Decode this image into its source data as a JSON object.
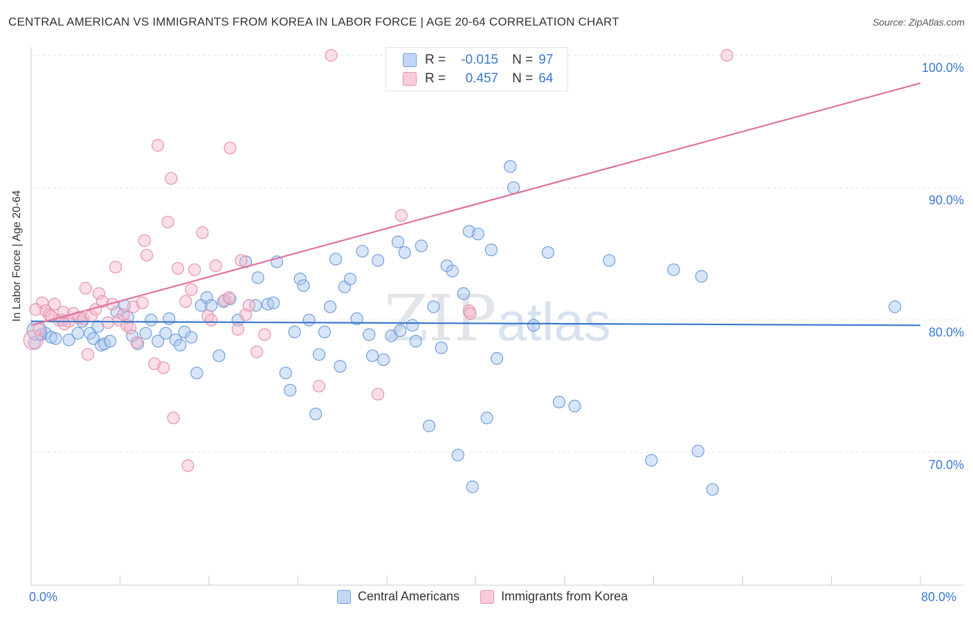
{
  "header": {
    "title": "CENTRAL AMERICAN VS IMMIGRANTS FROM KOREA IN LABOR FORCE | AGE 20-64 CORRELATION CHART",
    "source": "Source: ZipAtlas.com"
  },
  "watermark": {
    "zip": "ZIP",
    "atlas": "atlas"
  },
  "legend_top": [
    {
      "r_label": "R =",
      "r_value": "-0.015",
      "n_label": "N =",
      "n_value": "97",
      "color": "#a9c6ef"
    },
    {
      "r_label": "R =",
      "r_value": "0.457",
      "n_label": "N =",
      "n_value": "64",
      "color": "#f6b9cb"
    }
  ],
  "legend_bottom": [
    {
      "label": "Central Americans",
      "color": "#a9c6ef"
    },
    {
      "label": "Immigrants from Korea",
      "color": "#f6b9cb"
    }
  ],
  "axes": {
    "ylabel": "In Labor Force | Age 20-64",
    "x_min_label": "0.0%",
    "x_max_label": "80.0%",
    "y_ticks": [
      "100.0%",
      "90.0%",
      "80.0%",
      "70.0%"
    ]
  },
  "colors": {
    "blue_fill": "#a9c6ef",
    "blue_stroke": "#6f9fdc",
    "blue_line": "#3a78cc",
    "pink_fill": "#f6b9cb",
    "pink_stroke": "#e892ad",
    "pink_line": "#e0709a",
    "tick_label": "#3b78d0",
    "grid": "#dfe3ea"
  },
  "chart_data": {
    "type": "scatter",
    "title": "CENTRAL AMERICAN VS IMMIGRANTS FROM KOREA IN LABOR FORCE | AGE 20-64 CORRELATION CHART",
    "xlabel": "",
    "ylabel": "In Labor Force | Age 20-64",
    "xlim": [
      0,
      80
    ],
    "ylim": [
      60,
      101
    ],
    "y_gridlines": [
      70,
      80,
      90,
      100
    ],
    "grid": true,
    "legend_placement": "top-center",
    "series": [
      {
        "name": "Central Americans",
        "r": -0.015,
        "n": 97,
        "trend": {
          "x": [
            0,
            80
          ],
          "y": [
            79.9,
            79.6
          ]
        },
        "points": [
          [
            0.3,
            78.3
          ],
          [
            0.9,
            78.9
          ],
          [
            1.3,
            79.0
          ],
          [
            1.8,
            78.7
          ],
          [
            2.2,
            78.6
          ],
          [
            2.8,
            80.0
          ],
          [
            3.4,
            78.5
          ],
          [
            4.2,
            79.0
          ],
          [
            4.6,
            79.9
          ],
          [
            5.3,
            79.0
          ],
          [
            5.6,
            78.6
          ],
          [
            6.0,
            79.5
          ],
          [
            6.3,
            78.1
          ],
          [
            6.6,
            78.2
          ],
          [
            7.1,
            78.4
          ],
          [
            7.7,
            80.6
          ],
          [
            8.4,
            81.1
          ],
          [
            8.7,
            80.2
          ],
          [
            9.1,
            78.8
          ],
          [
            9.6,
            78.2
          ],
          [
            10.3,
            79.0
          ],
          [
            10.8,
            80.0
          ],
          [
            11.4,
            78.4
          ],
          [
            12.1,
            79.0
          ],
          [
            12.4,
            80.1
          ],
          [
            13.0,
            78.5
          ],
          [
            13.4,
            78.1
          ],
          [
            13.8,
            79.1
          ],
          [
            14.4,
            78.7
          ],
          [
            14.9,
            76.0
          ],
          [
            15.3,
            81.1
          ],
          [
            15.8,
            81.7
          ],
          [
            16.2,
            81.1
          ],
          [
            16.9,
            77.3
          ],
          [
            17.3,
            81.4
          ],
          [
            17.9,
            81.6
          ],
          [
            18.6,
            80.0
          ],
          [
            19.3,
            84.4
          ],
          [
            20.2,
            81.1
          ],
          [
            20.4,
            83.2
          ],
          [
            21.3,
            81.2
          ],
          [
            21.8,
            81.3
          ],
          [
            22.1,
            84.4
          ],
          [
            22.9,
            76.0
          ],
          [
            23.3,
            74.7
          ],
          [
            23.7,
            79.1
          ],
          [
            24.2,
            83.1
          ],
          [
            24.5,
            82.6
          ],
          [
            25.0,
            80.0
          ],
          [
            25.6,
            72.9
          ],
          [
            25.9,
            77.4
          ],
          [
            26.4,
            79.1
          ],
          [
            26.9,
            81.0
          ],
          [
            27.4,
            84.6
          ],
          [
            27.8,
            76.5
          ],
          [
            28.2,
            82.5
          ],
          [
            28.7,
            83.1
          ],
          [
            29.3,
            80.1
          ],
          [
            29.8,
            85.2
          ],
          [
            30.4,
            78.9
          ],
          [
            30.7,
            77.3
          ],
          [
            31.2,
            84.5
          ],
          [
            31.7,
            77.0
          ],
          [
            32.4,
            78.8
          ],
          [
            33.0,
            85.9
          ],
          [
            33.2,
            79.2
          ],
          [
            33.6,
            85.1
          ],
          [
            34.3,
            79.6
          ],
          [
            34.6,
            78.4
          ],
          [
            35.1,
            85.6
          ],
          [
            35.8,
            72.0
          ],
          [
            36.2,
            81.0
          ],
          [
            36.9,
            77.9
          ],
          [
            37.4,
            84.1
          ],
          [
            37.9,
            83.7
          ],
          [
            38.4,
            69.8
          ],
          [
            38.9,
            82.0
          ],
          [
            39.4,
            86.7
          ],
          [
            39.7,
            67.4
          ],
          [
            40.2,
            86.5
          ],
          [
            41.0,
            72.6
          ],
          [
            41.4,
            85.3
          ],
          [
            41.9,
            77.1
          ],
          [
            43.1,
            91.6
          ],
          [
            43.4,
            90.0
          ],
          [
            45.2,
            79.6
          ],
          [
            46.5,
            85.1
          ],
          [
            47.5,
            73.8
          ],
          [
            48.9,
            73.5
          ],
          [
            52.0,
            84.5
          ],
          [
            55.8,
            69.4
          ],
          [
            57.8,
            83.8
          ],
          [
            60.0,
            70.1
          ],
          [
            60.3,
            83.3
          ],
          [
            61.3,
            67.2
          ],
          [
            77.7,
            81.0
          ],
          [
            0.5,
            79.2
          ]
        ]
      },
      {
        "name": "Immigrants from Korea",
        "r": 0.457,
        "n": 64,
        "trend": {
          "x": [
            0,
            80
          ],
          "y": [
            79.6,
            97.9
          ]
        },
        "points": [
          [
            0.2,
            78.5
          ],
          [
            0.7,
            79.3
          ],
          [
            1.0,
            81.3
          ],
          [
            1.3,
            80.7
          ],
          [
            1.6,
            80.4
          ],
          [
            2.1,
            81.2
          ],
          [
            2.5,
            80.0
          ],
          [
            2.9,
            80.6
          ],
          [
            3.4,
            79.9
          ],
          [
            3.8,
            80.5
          ],
          [
            4.3,
            80.2
          ],
          [
            4.7,
            80.1
          ],
          [
            4.9,
            82.4
          ],
          [
            5.1,
            77.4
          ],
          [
            5.4,
            80.3
          ],
          [
            5.8,
            80.8
          ],
          [
            6.1,
            82.0
          ],
          [
            6.4,
            81.4
          ],
          [
            6.9,
            79.8
          ],
          [
            7.3,
            81.2
          ],
          [
            7.6,
            84.0
          ],
          [
            7.9,
            80.0
          ],
          [
            8.3,
            80.4
          ],
          [
            8.6,
            79.6
          ],
          [
            8.9,
            79.4
          ],
          [
            9.2,
            81.0
          ],
          [
            9.5,
            78.3
          ],
          [
            10.0,
            81.3
          ],
          [
            10.2,
            86.0
          ],
          [
            10.4,
            84.9
          ],
          [
            11.1,
            76.7
          ],
          [
            11.4,
            93.2
          ],
          [
            11.9,
            76.4
          ],
          [
            12.3,
            87.4
          ],
          [
            12.6,
            90.7
          ],
          [
            12.8,
            72.6
          ],
          [
            13.2,
            83.9
          ],
          [
            13.9,
            81.4
          ],
          [
            14.1,
            69.0
          ],
          [
            14.4,
            82.3
          ],
          [
            14.7,
            83.8
          ],
          [
            15.4,
            86.6
          ],
          [
            15.9,
            80.3
          ],
          [
            16.2,
            80.0
          ],
          [
            16.6,
            84.1
          ],
          [
            17.4,
            81.5
          ],
          [
            17.8,
            81.7
          ],
          [
            17.9,
            93.0
          ],
          [
            18.6,
            79.3
          ],
          [
            18.9,
            84.5
          ],
          [
            19.3,
            80.4
          ],
          [
            19.6,
            81.1
          ],
          [
            20.3,
            77.6
          ],
          [
            21.0,
            78.9
          ],
          [
            25.9,
            75.0
          ],
          [
            27.0,
            100.0
          ],
          [
            31.2,
            74.4
          ],
          [
            33.3,
            87.9
          ],
          [
            39.4,
            80.7
          ],
          [
            39.5,
            80.5
          ],
          [
            62.6,
            100.0
          ],
          [
            0.4,
            80.8
          ],
          [
            1.8,
            80.3
          ],
          [
            3.0,
            79.7
          ]
        ]
      }
    ]
  }
}
